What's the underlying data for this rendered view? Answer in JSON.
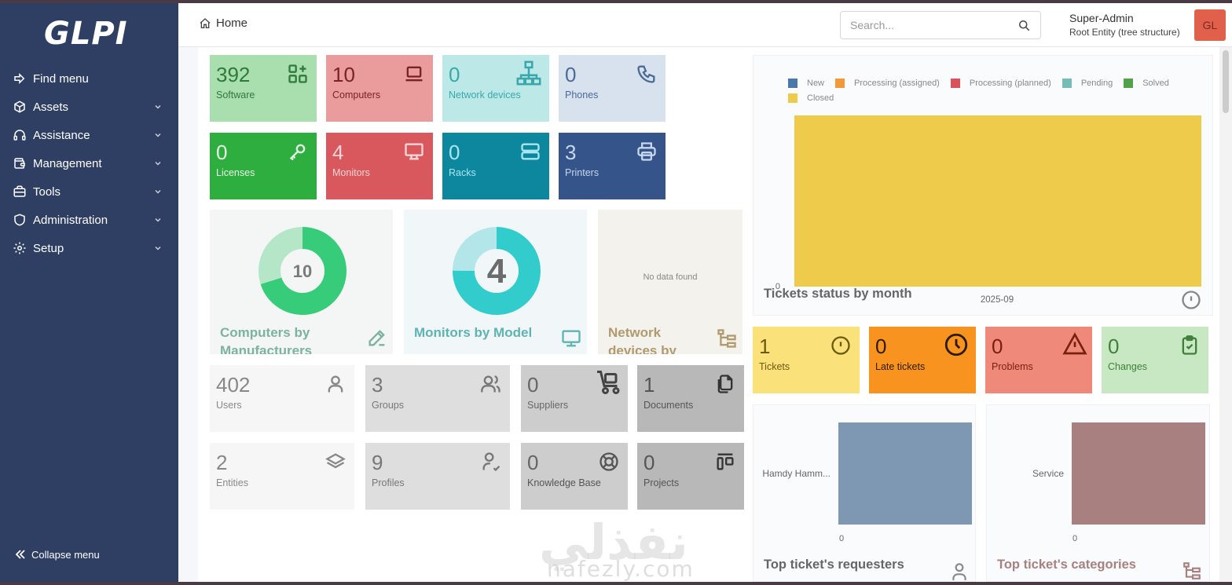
{
  "app": {
    "logo": "GLPI"
  },
  "sidebar": {
    "items": [
      {
        "label": "Find menu",
        "icon": "arrow-right-icon"
      },
      {
        "label": "Assets",
        "icon": "cube-icon"
      },
      {
        "label": "Assistance",
        "icon": "headset-icon"
      },
      {
        "label": "Management",
        "icon": "wallet-icon"
      },
      {
        "label": "Tools",
        "icon": "briefcase-icon"
      },
      {
        "label": "Administration",
        "icon": "shield-icon"
      },
      {
        "label": "Setup",
        "icon": "gear-icon"
      }
    ],
    "collapse_label": "Collapse menu"
  },
  "header": {
    "breadcrumb": "Home",
    "search_placeholder": "Search...",
    "user_name": "Super-Admin",
    "user_entity": "Root Entity (tree structure)",
    "avatar_initials": "GL"
  },
  "tiles": [
    {
      "value": "392",
      "label": "Software",
      "icon": "apps-add-icon",
      "bg": "#a9dfae",
      "fg": "#2f7a3b"
    },
    {
      "value": "10",
      "label": "Computers",
      "icon": "laptop-icon",
      "bg": "#ea9b9b",
      "fg": "#7a2323"
    },
    {
      "value": "0",
      "label": "Network devices",
      "icon": "network-icon",
      "bg": "#bce8e8",
      "fg": "#3aa8aa"
    },
    {
      "value": "0",
      "label": "Phones",
      "icon": "phone-icon",
      "bg": "#d8e2ee",
      "fg": "#4b6a96"
    },
    {
      "value": "0",
      "label": "Licenses",
      "icon": "key-icon",
      "bg": "#2eae3e",
      "fg": "#e6f7e8"
    },
    {
      "value": "4",
      "label": "Monitors",
      "icon": "monitor-icon",
      "bg": "#d8585e",
      "fg": "#f6d6d6"
    },
    {
      "value": "0",
      "label": "Racks",
      "icon": "server-icon",
      "bg": "#0d879e",
      "fg": "#a8e6f2"
    },
    {
      "value": "3",
      "label": "Printers",
      "icon": "printer-icon",
      "bg": "#34548a",
      "fg": "#c8d6ee"
    }
  ],
  "donuts": [
    {
      "title": "Computers by Manufacturers",
      "center": "10",
      "icon": "edit-icon",
      "fg": "#7cb3a0",
      "bg": "#f2f6f5"
    },
    {
      "title": "Monitors by Model",
      "center": "4",
      "icon": "monitor-icon",
      "fg": "#5eb3b3",
      "bg": "#f1f7f8"
    },
    {
      "title": "Network devices by",
      "empty_text": "No data found",
      "icon": "tree-icon",
      "fg": "#b09a6e",
      "bg": "#f4f2ec"
    }
  ],
  "small_tiles": [
    {
      "value": "402",
      "label": "Users",
      "icon": "user-icon",
      "bg": "#f6f6f6"
    },
    {
      "value": "3",
      "label": "Groups",
      "icon": "users-icon",
      "bg": "#dedede"
    },
    {
      "value": "0",
      "label": "Suppliers",
      "icon": "cart-icon",
      "bg": "#cdcdcd"
    },
    {
      "value": "1",
      "label": "Documents",
      "icon": "files-icon",
      "bg": "#b8b8b8"
    },
    {
      "value": "2",
      "label": "Entities",
      "icon": "layers-icon",
      "bg": "#f6f6f6"
    },
    {
      "value": "9",
      "label": "Profiles",
      "icon": "user-check-icon",
      "bg": "#dedede"
    },
    {
      "value": "0",
      "label": "Knowledge Base",
      "icon": "lifebuoy-icon",
      "bg": "#cdcdcd"
    },
    {
      "value": "0",
      "label": "Projects",
      "icon": "layout-icon",
      "bg": "#b8b8b8"
    }
  ],
  "status_chart": {
    "title": "Tickets status by month",
    "legend": [
      {
        "name": "New",
        "color": "#4a78a8"
      },
      {
        "name": "Processing (assigned)",
        "color": "#f29a3a"
      },
      {
        "name": "Processing (planned)",
        "color": "#d8545a"
      },
      {
        "name": "Pending",
        "color": "#76bdb8"
      },
      {
        "name": "Solved",
        "color": "#51a24b"
      },
      {
        "name": "Closed",
        "color": "#eecb4a"
      }
    ],
    "y_tick": "0",
    "x_tick": "2025-09",
    "icon": "alert-circle-icon"
  },
  "ticket_tiles": [
    {
      "value": "1",
      "label": "Tickets",
      "icon": "alert-circle-icon",
      "bg": "#fbe17a",
      "fg": "#6b5a10"
    },
    {
      "value": "0",
      "label": "Late tickets",
      "icon": "clock-icon",
      "bg": "#f7931e",
      "fg": "#2b1a05"
    },
    {
      "value": "0",
      "label": "Problems",
      "icon": "warning-icon",
      "bg": "#ef8a7a",
      "fg": "#7a1e12"
    },
    {
      "value": "0",
      "label": "Changes",
      "icon": "clipboard-check-icon",
      "bg": "#c7e8c2",
      "fg": "#3f7f3a"
    }
  ],
  "requesters_chart": {
    "title": "Top ticket's requesters",
    "category": "Hamdy Hamm...",
    "x_tick": "0",
    "bar_color": "#7e97b2",
    "icon": "user-icon"
  },
  "categories_chart": {
    "title": "Top ticket's categories",
    "category": "Service",
    "x_tick": "0",
    "bar_color": "#a98080",
    "icon": "tree-icon"
  },
  "chart_data": [
    {
      "type": "bar",
      "title": "Tickets status by month",
      "categories": [
        "2025-09"
      ],
      "series": [
        {
          "name": "New",
          "values": [
            0
          ]
        },
        {
          "name": "Processing (assigned)",
          "values": [
            0
          ]
        },
        {
          "name": "Processing (planned)",
          "values": [
            0
          ]
        },
        {
          "name": "Pending",
          "values": [
            0
          ]
        },
        {
          "name": "Solved",
          "values": [
            0
          ]
        },
        {
          "name": "Closed",
          "values": [
            1
          ]
        }
      ]
    },
    {
      "type": "bar",
      "title": "Top ticket's requesters",
      "categories": [
        "Hamdy Hamm..."
      ],
      "values": [
        1
      ]
    },
    {
      "type": "bar",
      "title": "Top ticket's categories",
      "categories": [
        "Service"
      ],
      "values": [
        1
      ]
    }
  ],
  "watermark": {
    "arabic": "نفذلي",
    "latin": "nafezly.com"
  }
}
